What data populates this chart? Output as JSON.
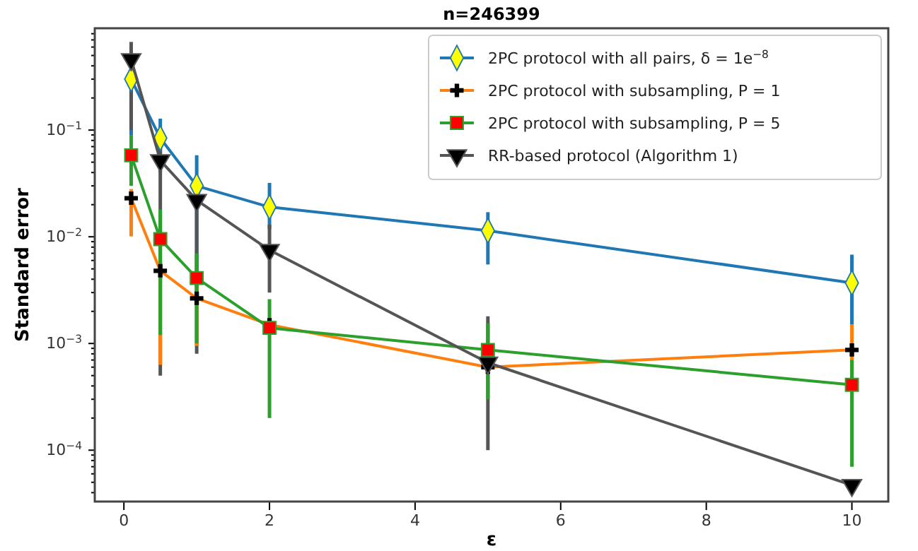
{
  "chart_data": {
    "type": "line",
    "title": "n=246399",
    "xlabel": "ε",
    "ylabel": "Standard error",
    "log": "y",
    "grid": false,
    "legend": "top right",
    "x": [
      0.1,
      0.5,
      1,
      2,
      5,
      10
    ],
    "xlim": [
      -0.4,
      10.5
    ],
    "xticks": [
      0,
      2,
      4,
      6,
      8,
      10
    ],
    "ylim": [
      3.3e-05,
      0.9
    ],
    "yticks": [
      {
        "value": 0.0001,
        "label": "10$^{−4}$"
      },
      {
        "value": 0.001,
        "label": "10$^{−3}$"
      },
      {
        "value": 0.01,
        "label": "10$^{−2}$"
      },
      {
        "value": 0.1,
        "label": "10$^{−1}$"
      },
      {
        "value": 4e-05,
        "label": null
      },
      {
        "value": 5e-05,
        "label": null
      },
      {
        "value": 6e-05,
        "label": null
      },
      {
        "value": 7e-05,
        "label": null
      },
      {
        "value": 8e-05,
        "label": null
      },
      {
        "value": 9e-05,
        "label": null
      },
      {
        "value": 0.0002,
        "label": null
      },
      {
        "value": 0.0003,
        "label": null
      },
      {
        "value": 0.0004,
        "label": null
      },
      {
        "value": 0.0005,
        "label": null
      },
      {
        "value": 0.0006,
        "label": null
      },
      {
        "value": 0.0007,
        "label": null
      },
      {
        "value": 0.0008,
        "label": null
      },
      {
        "value": 0.0009,
        "label": null
      },
      {
        "value": 0.002,
        "label": null
      },
      {
        "value": 0.003,
        "label": null
      },
      {
        "value": 0.004,
        "label": null
      },
      {
        "value": 0.005,
        "label": null
      },
      {
        "value": 0.006,
        "label": null
      },
      {
        "value": 0.007,
        "label": null
      },
      {
        "value": 0.008,
        "label": null
      },
      {
        "value": 0.009,
        "label": null
      },
      {
        "value": 0.02,
        "label": null
      },
      {
        "value": 0.03,
        "label": null
      },
      {
        "value": 0.04,
        "label": null
      },
      {
        "value": 0.05,
        "label": null
      },
      {
        "value": 0.06,
        "label": null
      },
      {
        "value": 0.07,
        "label": null
      },
      {
        "value": 0.08,
        "label": null
      },
      {
        "value": 0.09,
        "label": null
      },
      {
        "value": 0.2,
        "label": null
      },
      {
        "value": 0.3,
        "label": null
      },
      {
        "value": 0.4,
        "label": null
      },
      {
        "value": 0.5,
        "label": null
      },
      {
        "value": 0.6,
        "label": null
      },
      {
        "value": 0.7,
        "label": null
      },
      {
        "value": 0.8,
        "label": null
      }
    ],
    "series": [
      {
        "name": "2PC protocol with all pairs, δ = 1e$^{−8}$",
        "color": "#1f77b4",
        "marker": "diamond",
        "values": [
          0.3,
          0.084,
          0.03,
          0.019,
          0.0114,
          0.0037
        ],
        "errors": [
          [
            0.09,
            0.45
          ],
          [
            0.04,
            0.128
          ],
          [
            0.003,
            0.058
          ],
          [
            0.0118,
            0.032
          ],
          [
            0.0055,
            0.017
          ],
          [
            0.0015,
            0.0068
          ]
        ]
      },
      {
        "name": "2PC protocol with subsampling, P = 1",
        "color": "#ff7f0e",
        "marker": "cross",
        "values": [
          0.023,
          0.0048,
          0.00265,
          0.0015,
          0.0006,
          0.00087
        ],
        "errors": [
          [
            0.0101,
            0.028
          ],
          [
            0.00063,
            0.006
          ],
          [
            0.00095,
            0.0045
          ],
          null,
          null,
          [
            0.0003,
            0.0015
          ]
        ]
      },
      {
        "name": "2PC protocol with subsampling, P = 5",
        "color": "#2ca02c",
        "marker": "square",
        "values": [
          0.058,
          0.0095,
          0.0041,
          0.0014,
          0.00087,
          0.00041
        ],
        "errors": [
          [
            0.03,
            0.09
          ],
          [
            0.0012,
            0.018
          ],
          [
            0.001,
            0.007
          ],
          [
            0.0002,
            0.0026
          ],
          [
            0.0003,
            0.00155
          ],
          [
            7e-05,
            0.0007
          ]
        ]
      },
      {
        "name": "RR-based protocol (Algorithm 1)",
        "color": "#555555",
        "marker": "triangle",
        "values": [
          0.46,
          0.052,
          0.022,
          0.0075,
          0.00066,
          4.7e-05
        ],
        "errors": [
          [
            0.1,
            0.67
          ],
          [
            0.0005,
            0.09
          ],
          [
            0.0008,
            0.035
          ],
          [
            0.003,
            0.013
          ],
          [
            0.0001,
            0.0018
          ],
          null
        ]
      }
    ]
  }
}
